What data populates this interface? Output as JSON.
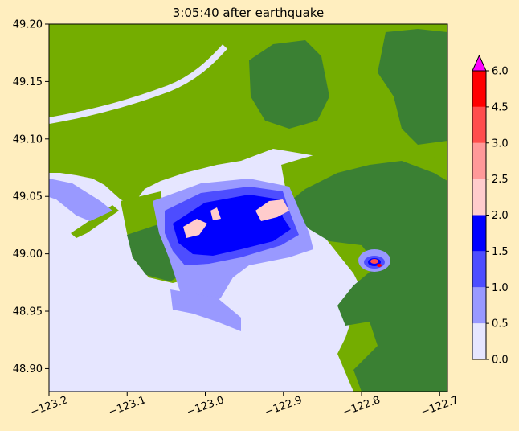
{
  "chart_data": {
    "type": "heatmap",
    "title": "3:05:40 after earthquake",
    "xlabel": "",
    "ylabel": "",
    "xlim": [
      -123.2,
      -122.69
    ],
    "ylim": [
      48.88,
      49.2
    ],
    "x_ticks": [
      -123.2,
      -123.1,
      -123.0,
      -122.9,
      -122.8,
      -122.7
    ],
    "x_tick_labels": [
      "−123.2",
      "−123.1",
      "−123.0",
      "−122.9",
      "−122.8",
      "−122.7"
    ],
    "y_ticks": [
      48.9,
      48.95,
      49.0,
      49.05,
      49.1,
      49.15,
      49.2
    ],
    "y_tick_labels": [
      "48.90",
      "48.95",
      "49.00",
      "49.05",
      "49.10",
      "49.15",
      "49.20"
    ],
    "colorbar": {
      "bounds": [
        0.0,
        0.5,
        1.0,
        1.5,
        2.0,
        2.5,
        3.0,
        4.5,
        6.0
      ],
      "tick_labels": [
        "0.0",
        "0.5",
        "1.0",
        "1.5",
        "2.0",
        "2.5",
        "3.0",
        "4.5",
        "6.0"
      ],
      "colors": [
        "#e6e6ff",
        "#9999ff",
        "#4d4dff",
        "#0000ff",
        "#ffcccc",
        "#ff9999",
        "#ff4d4d",
        "#ff0000"
      ],
      "extend_max_color": "#ff00ff"
    },
    "background_colors": {
      "water": "#e6e6ff",
      "lowland": "#74ad00",
      "highland": "#3a8033"
    },
    "grid": false
  }
}
